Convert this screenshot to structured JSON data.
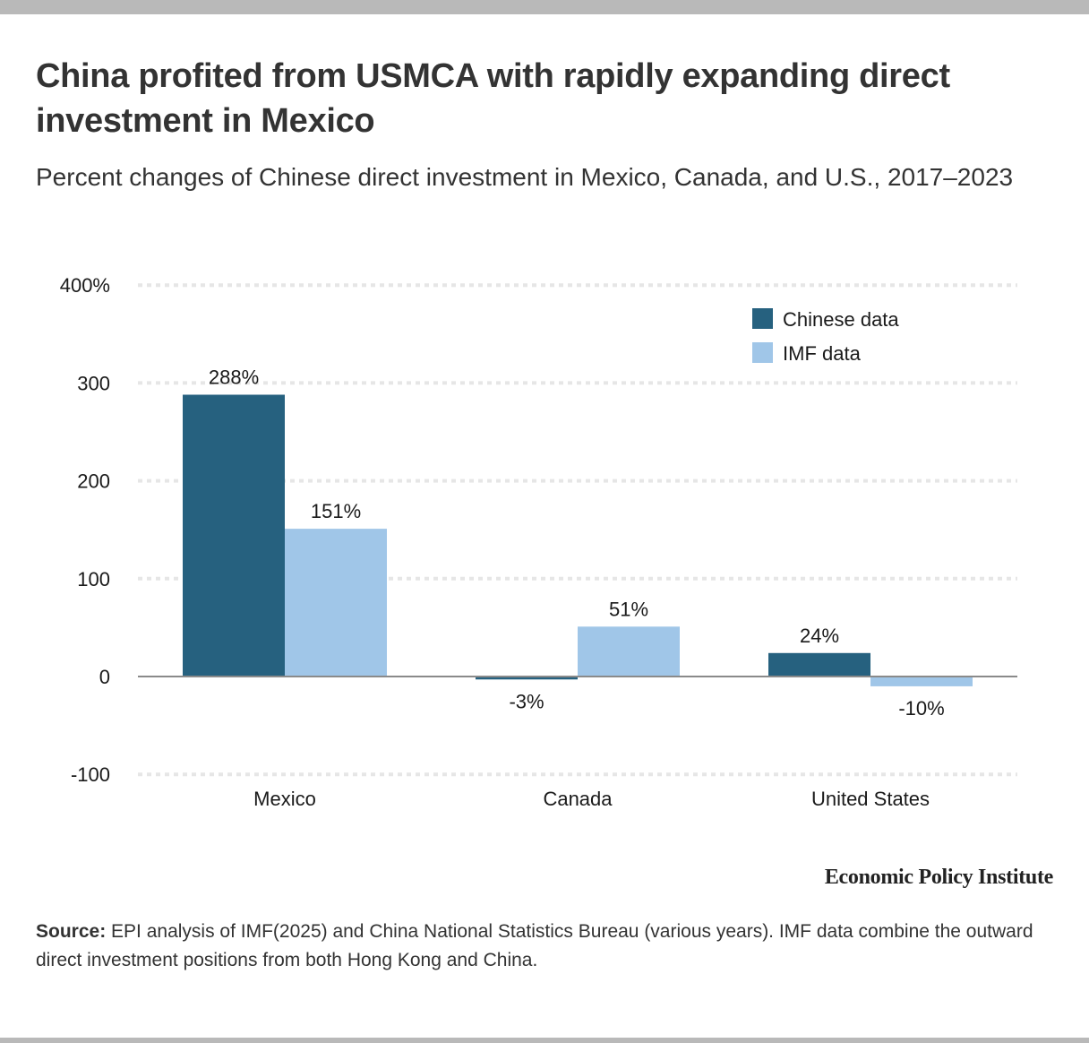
{
  "header": {
    "title": "China profited from USMCA with rapidly expanding direct investment in Mexico",
    "subtitle": "Percent changes of Chinese direct investment in Mexico, Canada, and U.S., 2017–2023"
  },
  "footer": {
    "brand": "Economic Policy Institute",
    "source_label": "Source:",
    "source_text": " EPI analysis of IMF(2025) and China National Statistics Bureau (various years). IMF data combine the outward direct investment positions from both Hong Kong and China."
  },
  "colors": {
    "chinese": "#26617f",
    "imf": "#a0c6e8",
    "grid": "#e6e6e6",
    "zero": "#8a8a8a"
  },
  "chart_data": {
    "type": "bar",
    "title": "China profited from USMCA with rapidly expanding direct investment in Mexico",
    "subtitle": "Percent changes of Chinese direct investment in Mexico, Canada, and U.S., 2017–2023",
    "xlabel": "",
    "ylabel": "",
    "categories": [
      "Mexico",
      "Canada",
      "United States"
    ],
    "series": [
      {
        "name": "Chinese data",
        "values": [
          288,
          -3,
          24
        ],
        "labels": [
          "288%",
          "-3%",
          "24%"
        ]
      },
      {
        "name": "IMF data",
        "values": [
          151,
          51,
          -10
        ],
        "labels": [
          "151%",
          "51%",
          "-10%"
        ]
      }
    ],
    "ylim": [
      -100,
      400
    ],
    "yticks": [
      400,
      300,
      200,
      100,
      0,
      -100
    ],
    "ytick_labels": [
      "400%",
      "300",
      "200",
      "100",
      "0",
      "-100"
    ],
    "grid": true,
    "legend": {
      "placement": "top-right",
      "entries": [
        "Chinese data",
        "IMF data"
      ]
    }
  }
}
